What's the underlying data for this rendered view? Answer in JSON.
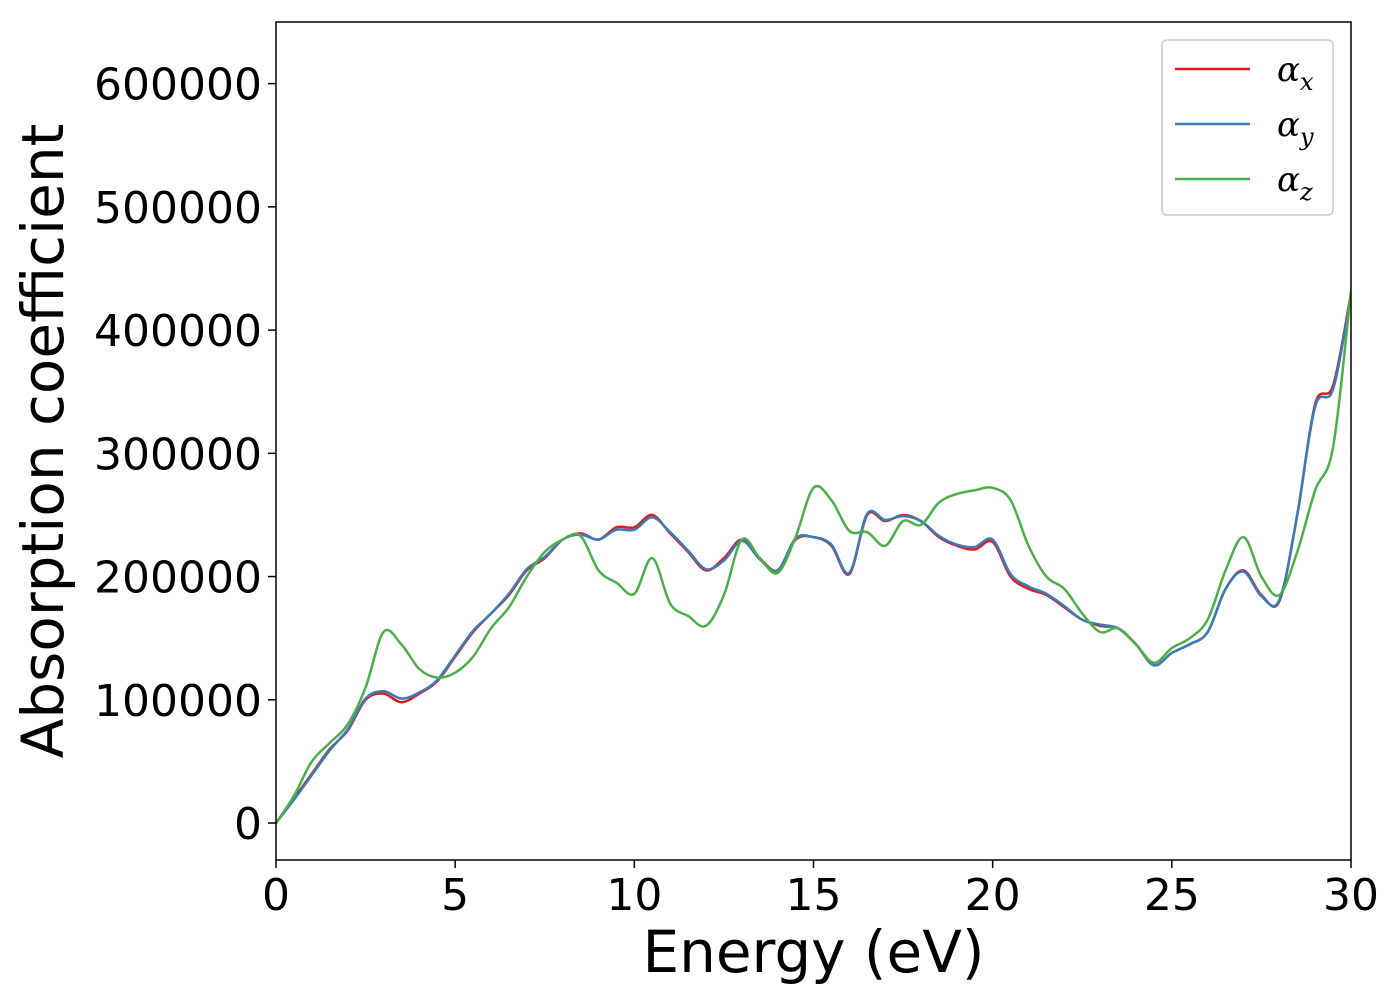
{
  "chart_data": {
    "type": "line",
    "title": "",
    "xlabel": "Energy (eV)",
    "ylabel": "Absorption coefficient",
    "xlim": [
      0,
      30
    ],
    "ylim": [
      -30000,
      650000
    ],
    "xticks": [
      0,
      5,
      10,
      15,
      20,
      25,
      30
    ],
    "yticks": [
      0,
      100000,
      200000,
      300000,
      400000,
      500000,
      600000
    ],
    "grid": false,
    "legend_position": "top-right",
    "series": [
      {
        "name": "αx",
        "symbol": "α",
        "subscript": "x",
        "color": "#e41a1c",
        "x": [
          0,
          0.5,
          1,
          1.5,
          2,
          2.5,
          3,
          3.5,
          4,
          4.5,
          5,
          5.5,
          6,
          6.5,
          7,
          7.5,
          8,
          8.5,
          9,
          9.5,
          10,
          10.5,
          11,
          11.5,
          12,
          12.5,
          13,
          13.5,
          14,
          14.5,
          15,
          15.5,
          16,
          16.5,
          17,
          17.5,
          18,
          18.5,
          19,
          19.5,
          20,
          20.5,
          21,
          21.5,
          22,
          22.5,
          23,
          23.5,
          24,
          24.5,
          25,
          25.5,
          26,
          26.5,
          27,
          27.5,
          28,
          28.5,
          29,
          29.5,
          30
        ],
        "values": [
          0,
          20000,
          40000,
          60000,
          75000,
          100000,
          105000,
          98000,
          105000,
          115000,
          135000,
          155000,
          170000,
          185000,
          205000,
          215000,
          230000,
          235000,
          230000,
          240000,
          240000,
          250000,
          235000,
          220000,
          205000,
          215000,
          230000,
          215000,
          205000,
          230000,
          232000,
          225000,
          202000,
          250000,
          245000,
          250000,
          245000,
          232000,
          225000,
          222000,
          228000,
          200000,
          190000,
          185000,
          175000,
          165000,
          160000,
          158000,
          145000,
          128000,
          138000,
          145000,
          155000,
          190000,
          205000,
          185000,
          180000,
          250000,
          340000,
          355000,
          430000
        ]
      },
      {
        "name": "αy",
        "symbol": "α",
        "subscript": "y",
        "color": "#377eb8",
        "x": [
          0,
          0.5,
          1,
          1.5,
          2,
          2.5,
          3,
          3.5,
          4,
          4.5,
          5,
          5.5,
          6,
          6.5,
          7,
          7.5,
          8,
          8.5,
          9,
          9.5,
          10,
          10.5,
          11,
          11.5,
          12,
          12.5,
          13,
          13.5,
          14,
          14.5,
          15,
          15.5,
          16,
          16.5,
          17,
          17.5,
          18,
          18.5,
          19,
          19.5,
          20,
          20.5,
          21,
          21.5,
          22,
          22.5,
          23,
          23.5,
          24,
          24.5,
          25,
          25.5,
          26,
          26.5,
          27,
          27.5,
          28,
          28.5,
          29,
          29.5,
          30
        ],
        "values": [
          0,
          19000,
          39000,
          59000,
          76000,
          101000,
          107000,
          101000,
          106000,
          116000,
          136000,
          156000,
          170000,
          186000,
          206000,
          216000,
          230000,
          234000,
          230000,
          238000,
          238000,
          248000,
          236000,
          221000,
          206000,
          213000,
          229000,
          214000,
          205000,
          231000,
          232000,
          226000,
          203000,
          251000,
          246000,
          249000,
          245000,
          233000,
          226000,
          224000,
          230000,
          202000,
          192000,
          186000,
          176000,
          165000,
          161000,
          158000,
          145000,
          128000,
          138000,
          145000,
          155000,
          190000,
          204000,
          184000,
          181000,
          250000,
          338000,
          352000,
          428000
        ]
      },
      {
        "name": "αz",
        "symbol": "α",
        "subscript": "z",
        "color": "#4daf4a",
        "x": [
          0,
          0.5,
          1,
          1.5,
          2,
          2.5,
          3,
          3.5,
          4,
          4.5,
          5,
          5.5,
          6,
          6.5,
          7,
          7.5,
          8,
          8.5,
          9,
          9.5,
          10,
          10.5,
          11,
          11.5,
          12,
          12.5,
          13,
          13.5,
          14,
          14.5,
          15,
          15.5,
          16,
          16.5,
          17,
          17.5,
          18,
          18.5,
          19,
          19.5,
          20,
          20.5,
          21,
          21.5,
          22,
          22.5,
          23,
          23.5,
          24,
          24.5,
          25,
          25.5,
          26,
          26.5,
          27,
          27.5,
          28,
          28.5,
          29,
          29.5,
          30
        ],
        "values": [
          0,
          22000,
          50000,
          65000,
          80000,
          110000,
          155000,
          145000,
          125000,
          118000,
          122000,
          135000,
          158000,
          175000,
          200000,
          220000,
          230000,
          233000,
          205000,
          195000,
          186000,
          215000,
          178000,
          168000,
          160000,
          185000,
          230000,
          215000,
          203000,
          232000,
          272000,
          262000,
          237000,
          236000,
          225000,
          245000,
          242000,
          260000,
          267000,
          270000,
          272000,
          262000,
          225000,
          200000,
          190000,
          170000,
          155000,
          158000,
          145000,
          130000,
          142000,
          150000,
          165000,
          205000,
          232000,
          200000,
          185000,
          220000,
          270000,
          305000,
          432000
        ]
      }
    ]
  }
}
